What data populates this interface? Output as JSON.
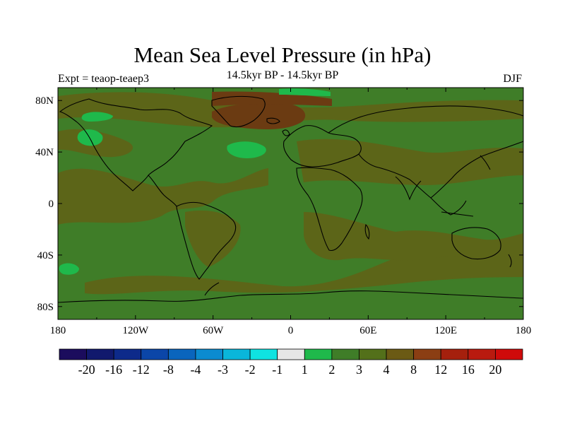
{
  "title": "Mean Sea Level Pressure (in hPa)",
  "subtitle_center": "14.5kyr BP - 14.5kyr BP",
  "subtitle_left": "Expt = teaop-teaep3",
  "subtitle_right": "DJF",
  "map": {
    "projection": "cylindrical-equidistant",
    "lon_range": [
      -180,
      180
    ],
    "lat_range": [
      -90,
      90
    ],
    "x_ticks": [
      "180",
      "120W",
      "60W",
      "0",
      "60E",
      "120E",
      "180"
    ],
    "y_ticks": [
      "80N",
      "40N",
      "0",
      "40S",
      "80S"
    ],
    "fill_classes": {
      "2_to_3": "#1fb94b",
      "3_to_4": "#3f7d28",
      "4_to_8": "#5c6518",
      "8_to_12": "#6b3b12"
    },
    "regions": [
      {
        "name": "north-atlantic-low",
        "class": "8_to_12"
      },
      {
        "name": "pacific-positive-band",
        "class": "4_to_8"
      },
      {
        "name": "atlantic-negative-cell",
        "class": "2_to_3"
      },
      {
        "name": "alaska-negative-cell",
        "class": "2_to_3"
      }
    ]
  },
  "colorbar": {
    "labels": [
      "-20",
      "-16",
      "-12",
      "-8",
      "-4",
      "-3",
      "-2",
      "-1",
      "1",
      "2",
      "3",
      "4",
      "8",
      "12",
      "16",
      "20"
    ],
    "colors": [
      "#1b0c5d",
      "#11196d",
      "#0d2a8a",
      "#0b46a8",
      "#0a65bd",
      "#0b8bd0",
      "#0ab6da",
      "#0fe3e1",
      "#e6e6e6",
      "#1fb94b",
      "#3f7d28",
      "#53701a",
      "#6b5a14",
      "#8b3e13",
      "#a5200d",
      "#b91a0f",
      "#cf0a0a"
    ]
  }
}
